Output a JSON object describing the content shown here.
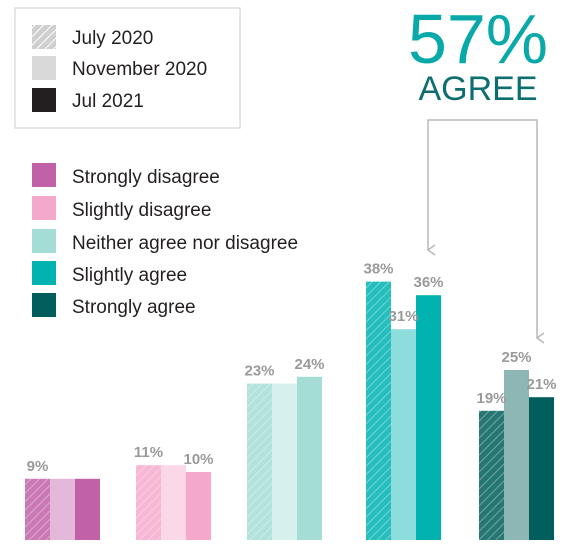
{
  "callout": {
    "value": "57%",
    "label": "AGREE"
  },
  "chart_data": {
    "type": "bar",
    "categories": [
      "Strongly disagree",
      "Slightly disagree",
      "Neither agree nor disagree",
      "Slightly agree",
      "Strongly agree"
    ],
    "series": [
      {
        "name": "July 2020",
        "values": [
          9,
          11,
          23,
          38,
          19
        ]
      },
      {
        "name": "November 2020",
        "values": [
          9,
          11,
          23,
          31,
          25
        ]
      },
      {
        "name": "Jul 2021",
        "values": [
          9,
          10,
          24,
          36,
          21
        ]
      }
    ],
    "data_labels": [
      [
        "9%",
        "",
        ""
      ],
      [
        "11%",
        "",
        "10%"
      ],
      [
        "23%",
        "",
        "24%"
      ],
      [
        "38%",
        "31%",
        "36%"
      ],
      [
        "19%",
        "25%",
        "21%"
      ]
    ],
    "category_colors": [
      "#c162a8",
      "#f4a9cc",
      "#a4ddd6",
      "#00b3b0",
      "#005f5c"
    ],
    "series_styles": [
      "hatched",
      "light",
      "solid"
    ],
    "series_legend_colors": [
      "#cfcfcf",
      "#d9d9d9",
      "#231f20"
    ],
    "ylim": [
      0,
      40
    ],
    "legend_placement": "top-left",
    "grid": false
  }
}
